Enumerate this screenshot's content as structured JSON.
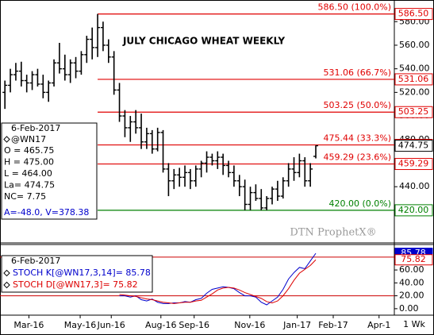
{
  "chart_data": [
    {
      "type": "ohlc",
      "title": "JULY CHICAGO WHEAT WEEKLY",
      "watermark": "DTN ProphetX®",
      "series": [
        {
          "name": "@WN17",
          "color": "#000000",
          "open": [
            520,
            526,
            535,
            538,
            530,
            528,
            535,
            527,
            520,
            528,
            545,
            540,
            535,
            545,
            538,
            552,
            565,
            558,
            575,
            560,
            550,
            522,
            500,
            490,
            495,
            490,
            478,
            485,
            472,
            486,
            455,
            445,
            450,
            448,
            452,
            445,
            455,
            460,
            465,
            462,
            465,
            458,
            452,
            445,
            440,
            425,
            435,
            430,
            422,
            430,
            438,
            432,
            445,
            455,
            452,
            462,
            445,
            465.75
          ],
          "high": [
            530,
            540,
            545,
            546,
            535,
            538,
            540,
            535,
            530,
            548,
            562,
            552,
            548,
            550,
            555,
            568,
            575,
            586.5,
            580,
            565,
            555,
            528,
            505,
            500,
            505,
            502,
            490,
            488,
            490,
            488,
            460,
            455,
            456,
            458,
            455,
            458,
            462,
            470,
            468,
            470,
            468,
            462,
            458,
            450,
            446,
            440,
            442,
            438,
            432,
            440,
            445,
            448,
            460,
            465,
            468,
            465,
            460,
            475
          ],
          "low": [
            506,
            520,
            530,
            525,
            520,
            522,
            525,
            515,
            512,
            525,
            536,
            530,
            528,
            532,
            535,
            545,
            548,
            550,
            555,
            545,
            518,
            495,
            482,
            478,
            485,
            472,
            472,
            468,
            470,
            452,
            432,
            438,
            440,
            440,
            438,
            440,
            448,
            452,
            458,
            455,
            450,
            448,
            440,
            432,
            420,
            420,
            428,
            420,
            420,
            425,
            428,
            430,
            440,
            445,
            448,
            440,
            440,
            464
          ],
          "close": [
            526,
            535,
            538,
            530,
            528,
            535,
            527,
            520,
            528,
            545,
            540,
            535,
            545,
            538,
            552,
            565,
            558,
            575,
            560,
            550,
            522,
            500,
            490,
            495,
            490,
            478,
            485,
            472,
            486,
            455,
            445,
            450,
            448,
            452,
            445,
            455,
            460,
            465,
            462,
            465,
            458,
            452,
            445,
            440,
            425,
            435,
            430,
            422,
            430,
            438,
            432,
            445,
            455,
            452,
            462,
            445,
            455,
            474.75
          ]
        }
      ],
      "last_tag": "474.75",
      "info": {
        "date": "6-Feb-2017",
        "lines": [
          "O = 465.75",
          "H = 475.00",
          "L = 464.00",
          "La= 474.75",
          "NC= 7.75"
        ],
        "footer": "A=-48.0, V=378.38"
      },
      "levels": [
        {
          "value": 586.5,
          "label": "586.50 (100.0%)",
          "tag": "586.50",
          "color": "#e00000"
        },
        {
          "value": 531.06,
          "label": "531.06 (66.7%)",
          "tag": "531.06",
          "color": "#e00000"
        },
        {
          "value": 503.25,
          "label": "503.25 (50.0%)",
          "tag": "503.25",
          "color": "#e00000"
        },
        {
          "value": 475.44,
          "label": "475.44 (33.3%)",
          "tag": "475.44",
          "color": "#e00000"
        },
        {
          "value": 459.29,
          "label": "459.29 (23.6%)",
          "tag": "459.29",
          "color": "#e00000"
        },
        {
          "value": 420,
          "label": "420.00 (0.0%)",
          "tag": "420.00",
          "color": "#008000"
        }
      ],
      "ylim": [
        393,
        597
      ],
      "yticks": [
        {
          "value": 440,
          "label": "440.00"
        },
        {
          "value": 460,
          "label": "460.00"
        },
        {
          "value": 480,
          "label": "480.00"
        },
        {
          "value": 500,
          "label": "500.00"
        },
        {
          "value": 520,
          "label": "520.00"
        },
        {
          "value": 540,
          "label": "540.00"
        },
        {
          "value": 560,
          "label": "560.00"
        },
        {
          "value": 580,
          "label": "580.00"
        }
      ],
      "xlim": [
        -0.9,
        71.4
      ],
      "xticks": [
        {
          "value": 4.4,
          "label": "Mar-16"
        },
        {
          "value": 13.8,
          "label": "May-16"
        },
        {
          "value": 19.5,
          "label": "Jun-16"
        },
        {
          "value": 28.6,
          "label": "Aug-16"
        },
        {
          "value": 34.7,
          "label": "Sep-16"
        },
        {
          "value": 44.9,
          "label": "Nov-16"
        },
        {
          "value": 53.6,
          "label": "Jan-17"
        },
        {
          "value": 60.2,
          "label": "Feb-17"
        },
        {
          "value": 68.6,
          "label": "Apr-1"
        }
      ],
      "period_label": "1 Wk"
    },
    {
      "type": "line",
      "legend_date": "6-Feb-2017",
      "series": [
        {
          "name": "STOCH K[@WN17,3,14]= 85.78",
          "color": "#0000cc",
          "tag": "85.78",
          "values": [
            null,
            null,
            null,
            null,
            null,
            null,
            null,
            null,
            null,
            null,
            null,
            null,
            null,
            null,
            null,
            null,
            null,
            null,
            null,
            null,
            null,
            20,
            20,
            18,
            20,
            14,
            12,
            15,
            10,
            8,
            8,
            9,
            9,
            11,
            10,
            14,
            16,
            24,
            30,
            32,
            34,
            33,
            31,
            25,
            20,
            20,
            18,
            10,
            6,
            12,
            18,
            30,
            46,
            56,
            64,
            62,
            74,
            85.78
          ]
        },
        {
          "name": "STOCH D[@WN17,3]= 75.82",
          "color": "#dd0000",
          "tag": "75.82",
          "values": [
            null,
            null,
            null,
            null,
            null,
            null,
            null,
            null,
            null,
            null,
            null,
            null,
            null,
            null,
            null,
            null,
            null,
            null,
            null,
            null,
            null,
            22,
            21,
            20,
            19,
            17,
            15,
            14,
            12,
            10,
            9,
            8,
            9,
            10,
            10,
            12,
            13,
            18,
            23,
            29,
            32,
            33,
            32,
            29,
            25,
            22,
            19,
            16,
            11,
            9,
            12,
            20,
            31,
            44,
            55,
            61,
            67,
            75.82
          ]
        }
      ],
      "levels": [
        20,
        80
      ],
      "level_color": "#cc0000",
      "ylim": [
        -10,
        97
      ],
      "yticks": [
        {
          "value": 0,
          "label": "0.00"
        },
        {
          "value": 20,
          "label": "20.00"
        },
        {
          "value": 40,
          "label": "40.00"
        },
        {
          "value": 60,
          "label": "60.00"
        },
        {
          "value": 80,
          "label": "80.00"
        }
      ]
    }
  ]
}
